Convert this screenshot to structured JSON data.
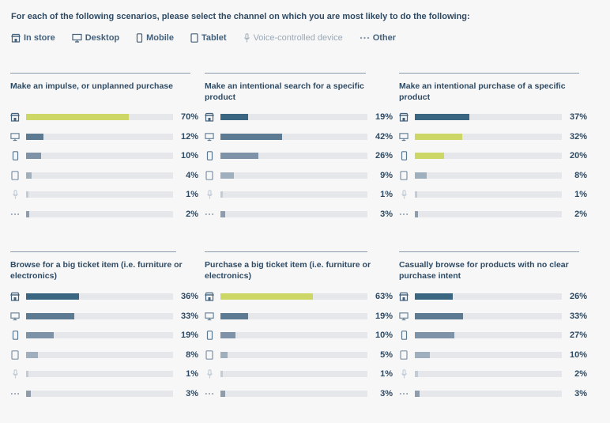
{
  "header": {
    "question": "For each of the following scenarios, please select the channel on which you are most likely to do the following:"
  },
  "legend": [
    {
      "label": "In store",
      "icon": "store-icon"
    },
    {
      "label": "Desktop",
      "icon": "desktop-icon"
    },
    {
      "label": "Mobile",
      "icon": "mobile-icon"
    },
    {
      "label": "Tablet",
      "icon": "tablet-icon"
    },
    {
      "label": "Voice-controlled device",
      "icon": "microphone-icon"
    },
    {
      "label": "Other",
      "icon": "dots-icon"
    }
  ],
  "colors": {
    "in_store": "#3a6681",
    "desktop": "#5d7a93",
    "mobile": "#7e93a7",
    "tablet": "#a0afbe",
    "voice": "#c2ccd6",
    "other": "#8e9cab",
    "highlight": "#cdd766",
    "track": "#e6e7ea"
  },
  "chart_data": [
    {
      "type": "bar",
      "title": "Make an impulse, or unplanned purchase",
      "categories": [
        "In store",
        "Desktop",
        "Mobile",
        "Tablet",
        "Voice-controlled device",
        "Other"
      ],
      "values": [
        70,
        12,
        10,
        4,
        1,
        2
      ],
      "labels": [
        "70%",
        "12%",
        "10%",
        "4%",
        "1%",
        "2%"
      ],
      "highlighted": [
        0
      ],
      "xlim": [
        0,
        100
      ]
    },
    {
      "type": "bar",
      "title": "Make an intentional search for a specific product",
      "categories": [
        "In store",
        "Desktop",
        "Mobile",
        "Tablet",
        "Voice-controlled device",
        "Other"
      ],
      "values": [
        19,
        42,
        26,
        9,
        1,
        3
      ],
      "labels": [
        "19%",
        "42%",
        "26%",
        "9%",
        "1%",
        "3%"
      ],
      "highlighted": [],
      "xlim": [
        0,
        100
      ]
    },
    {
      "type": "bar",
      "title": "Make an intentional purchase of a specific product",
      "categories": [
        "In store",
        "Desktop",
        "Mobile",
        "Tablet",
        "Voice-controlled device",
        "Other"
      ],
      "values": [
        37,
        32,
        20,
        8,
        1,
        2
      ],
      "labels": [
        "37%",
        "32%",
        "20%",
        "8%",
        "1%",
        "2%"
      ],
      "highlighted": [
        1,
        2
      ],
      "xlim": [
        0,
        100
      ]
    },
    {
      "type": "bar",
      "title": "Browse for a big ticket item (i.e. furniture or electronics)",
      "categories": [
        "In store",
        "Desktop",
        "Mobile",
        "Tablet",
        "Voice-controlled device",
        "Other"
      ],
      "values": [
        36,
        33,
        19,
        8,
        1,
        3
      ],
      "labels": [
        "36%",
        "33%",
        "19%",
        "8%",
        "1%",
        "3%"
      ],
      "highlighted": [],
      "xlim": [
        0,
        100
      ]
    },
    {
      "type": "bar",
      "title": "Purchase a big ticket item (i.e. furniture or electronics)",
      "categories": [
        "In store",
        "Desktop",
        "Mobile",
        "Tablet",
        "Voice-controlled device",
        "Other"
      ],
      "values": [
        63,
        19,
        10,
        5,
        1,
        3
      ],
      "labels": [
        "63%",
        "19%",
        "10%",
        "5%",
        "1%",
        "3%"
      ],
      "highlighted": [
        0
      ],
      "xlim": [
        0,
        100
      ]
    },
    {
      "type": "bar",
      "title": "Casually browse for products with no clear purchase intent",
      "categories": [
        "In store",
        "Desktop",
        "Mobile",
        "Tablet",
        "Voice-controlled device",
        "Other"
      ],
      "values": [
        26,
        33,
        27,
        10,
        2,
        3
      ],
      "labels": [
        "26%",
        "33%",
        "27%",
        "10%",
        "2%",
        "3%"
      ],
      "highlighted": [],
      "xlim": [
        0,
        100
      ]
    }
  ]
}
